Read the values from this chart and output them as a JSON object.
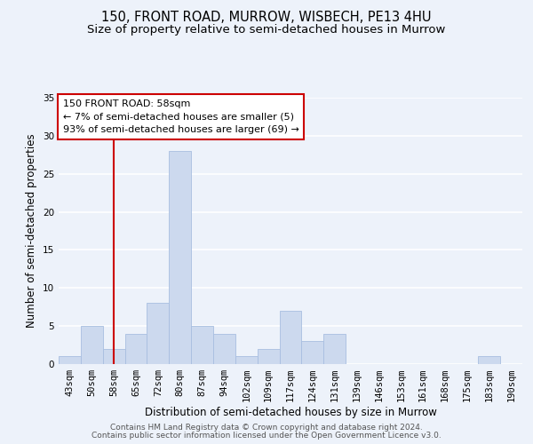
{
  "title": "150, FRONT ROAD, MURROW, WISBECH, PE13 4HU",
  "subtitle": "Size of property relative to semi-detached houses in Murrow",
  "xlabel": "Distribution of semi-detached houses by size in Murrow",
  "ylabel": "Number of semi-detached properties",
  "bin_labels": [
    "43sqm",
    "50sqm",
    "58sqm",
    "65sqm",
    "72sqm",
    "80sqm",
    "87sqm",
    "94sqm",
    "102sqm",
    "109sqm",
    "117sqm",
    "124sqm",
    "131sqm",
    "139sqm",
    "146sqm",
    "153sqm",
    "161sqm",
    "168sqm",
    "175sqm",
    "183sqm",
    "190sqm"
  ],
  "bar_heights": [
    1,
    5,
    2,
    4,
    8,
    28,
    5,
    4,
    1,
    2,
    7,
    3,
    4,
    0,
    0,
    0,
    0,
    0,
    0,
    1,
    0
  ],
  "bar_color": "#ccd9ee",
  "bar_edge_color": "#a8bee0",
  "vline_x_index": 2,
  "vline_color": "#cc0000",
  "ylim": [
    0,
    35
  ],
  "yticks": [
    0,
    5,
    10,
    15,
    20,
    25,
    30,
    35
  ],
  "annotation_title": "150 FRONT ROAD: 58sqm",
  "annotation_line1": "← 7% of semi-detached houses are smaller (5)",
  "annotation_line2": "93% of semi-detached houses are larger (69) →",
  "annotation_box_facecolor": "#ffffff",
  "annotation_box_edgecolor": "#cc0000",
  "footer1": "Contains HM Land Registry data © Crown copyright and database right 2024.",
  "footer2": "Contains public sector information licensed under the Open Government Licence v3.0.",
  "background_color": "#edf2fa",
  "grid_color": "#ffffff",
  "title_fontsize": 10.5,
  "subtitle_fontsize": 9.5,
  "axis_label_fontsize": 8.5,
  "tick_fontsize": 7.5,
  "annotation_fontsize": 8,
  "footer_fontsize": 6.5
}
